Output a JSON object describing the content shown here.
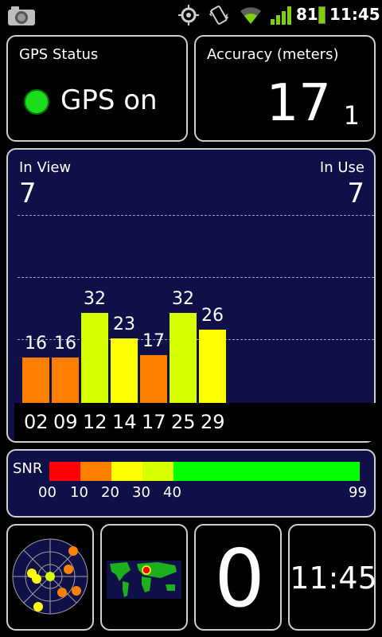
{
  "status_bar": {
    "battery_percent": "81",
    "time": "11:45",
    "icons": [
      "camera-icon",
      "gps-icon",
      "vibrate-icon",
      "wifi-icon",
      "signal-icon",
      "battery-icon"
    ]
  },
  "gps_status": {
    "title": "GPS Status",
    "state": "GPS on",
    "indicator_color": "#1cdd1c"
  },
  "accuracy": {
    "title": "Accuracy (meters)",
    "value": "17",
    "sub_value": "1"
  },
  "satellites": {
    "in_view_label": "In View",
    "in_view_value": "7",
    "in_use_label": "In Use",
    "in_use_value": "7",
    "snr_max": 99,
    "bars": [
      {
        "prn": "02",
        "snr": 16,
        "label": "16",
        "color": "#ff8000"
      },
      {
        "prn": "09",
        "snr": 16,
        "label": "16",
        "color": "#ff8000"
      },
      {
        "prn": "12",
        "snr": 32,
        "label": "32",
        "color": "#d6ff00"
      },
      {
        "prn": "14",
        "snr": 23,
        "label": "23",
        "color": "#ffff00"
      },
      {
        "prn": "17",
        "snr": 17,
        "label": "17",
        "color": "#ff8000"
      },
      {
        "prn": "25",
        "snr": 32,
        "label": "32",
        "color": "#d6ff00"
      },
      {
        "prn": "29",
        "snr": 26,
        "label": "26",
        "color": "#ffff00"
      }
    ]
  },
  "snr_legend": {
    "title": "SNR",
    "ticks": [
      "00",
      "10",
      "20",
      "30",
      "40",
      "99"
    ],
    "segments": [
      {
        "from": 0,
        "to": 10,
        "color": "#ff0000"
      },
      {
        "from": 10,
        "to": 20,
        "color": "#ff8000"
      },
      {
        "from": 20,
        "to": 30,
        "color": "#ffff00"
      },
      {
        "from": 30,
        "to": 40,
        "color": "#d6ff00"
      },
      {
        "from": 40,
        "to": 99,
        "color": "#00ff00"
      }
    ]
  },
  "tiles": {
    "speed_value": "0",
    "clock": "11:45"
  }
}
